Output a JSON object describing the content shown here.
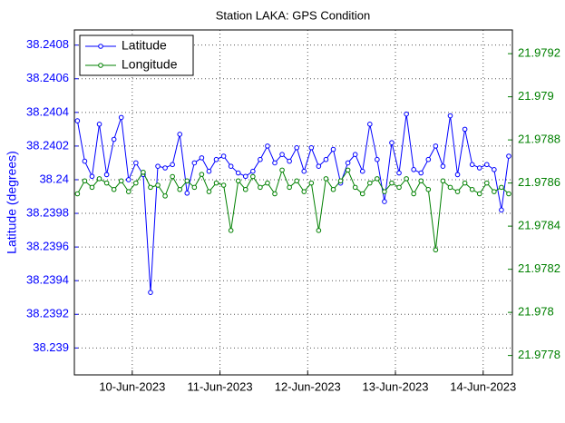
{
  "chart_data": {
    "type": "line",
    "title": "Station LAKA: GPS Condition",
    "y_label": "Latitude (degrees)",
    "x": [
      "2023-06-09T09:00",
      "2023-06-09T11:00",
      "2023-06-09T13:00",
      "2023-06-09T15:00",
      "2023-06-09T17:00",
      "2023-06-09T19:00",
      "2023-06-09T21:00",
      "2023-06-09T23:00",
      "2023-06-10T01:00",
      "2023-06-10T03:00",
      "2023-06-10T05:00",
      "2023-06-10T07:00",
      "2023-06-10T09:00",
      "2023-06-10T11:00",
      "2023-06-10T13:00",
      "2023-06-10T15:00",
      "2023-06-10T17:00",
      "2023-06-10T19:00",
      "2023-06-10T21:00",
      "2023-06-10T23:00",
      "2023-06-11T01:00",
      "2023-06-11T03:00",
      "2023-06-11T05:00",
      "2023-06-11T07:00",
      "2023-06-11T09:00",
      "2023-06-11T11:00",
      "2023-06-11T13:00",
      "2023-06-11T15:00",
      "2023-06-11T17:00",
      "2023-06-11T19:00",
      "2023-06-11T21:00",
      "2023-06-11T23:00",
      "2023-06-12T01:00",
      "2023-06-12T03:00",
      "2023-06-12T05:00",
      "2023-06-12T07:00",
      "2023-06-12T09:00",
      "2023-06-12T11:00",
      "2023-06-12T13:00",
      "2023-06-12T15:00",
      "2023-06-12T17:00",
      "2023-06-12T19:00",
      "2023-06-12T21:00",
      "2023-06-12T23:00",
      "2023-06-13T01:00",
      "2023-06-13T03:00",
      "2023-06-13T05:00",
      "2023-06-13T07:00",
      "2023-06-13T09:00",
      "2023-06-13T11:00",
      "2023-06-13T13:00",
      "2023-06-13T15:00",
      "2023-06-13T17:00",
      "2023-06-13T19:00",
      "2023-06-13T21:00",
      "2023-06-13T23:00",
      "2023-06-14T01:00",
      "2023-06-14T03:00",
      "2023-06-14T05:00",
      "2023-06-14T07:00"
    ],
    "series": [
      {
        "name": "Latitude",
        "color": "#0000ff",
        "values": [
          38.24035,
          38.24011,
          38.24002,
          38.24033,
          38.24003,
          38.24024,
          38.24037,
          38.24,
          38.2401,
          38.24003,
          38.23933,
          38.24008,
          38.24007,
          38.24009,
          38.24027,
          38.23992,
          38.2401,
          38.24013,
          38.24005,
          38.24012,
          38.24014,
          38.24008,
          38.24004,
          38.24002,
          38.24005,
          38.24012,
          38.2402,
          38.2401,
          38.24015,
          38.24011,
          38.24019,
          38.24005,
          38.24019,
          38.24008,
          38.24012,
          38.24018,
          38.23998,
          38.2401,
          38.24015,
          38.24005,
          38.24033,
          38.24012,
          38.23987,
          38.24022,
          38.24004,
          38.24039,
          38.24006,
          38.24004,
          38.24012,
          38.2402,
          38.24008,
          38.24038,
          38.24003,
          38.2403,
          38.24009,
          38.24007,
          38.24009,
          38.24006,
          38.23982,
          38.24014
        ]
      },
      {
        "name": "Longitude",
        "color": "#008000",
        "axis": "y2",
        "values": [
          21.97855,
          21.97861,
          21.97858,
          21.97862,
          21.9786,
          21.97857,
          21.97861,
          21.97856,
          21.9786,
          21.97865,
          21.97858,
          21.97859,
          21.97854,
          21.97863,
          21.97857,
          21.97861,
          21.97858,
          21.97864,
          21.97856,
          21.9786,
          21.97859,
          21.97838,
          21.97861,
          21.97857,
          21.97863,
          21.97858,
          21.9786,
          21.97855,
          21.97866,
          21.97858,
          21.97861,
          21.97856,
          21.9786,
          21.97838,
          21.97862,
          21.97857,
          21.97861,
          21.97866,
          21.97858,
          21.97855,
          21.9786,
          21.97862,
          21.97856,
          21.9786,
          21.97858,
          21.97862,
          21.97855,
          21.97861,
          21.97857,
          21.97829,
          21.97861,
          21.97858,
          21.97856,
          21.9786,
          21.97857,
          21.97855,
          21.9786,
          21.97856,
          21.97858,
          21.97855
        ]
      }
    ],
    "xlim": [
      "2023-06-09T08:10",
      "2023-06-14T08:00"
    ],
    "xticks": [
      {
        "value": "2023-06-10T00:00",
        "label": "10-Jun-2023"
      },
      {
        "value": "2023-06-11T00:00",
        "label": "11-Jun-2023"
      },
      {
        "value": "2023-06-12T00:00",
        "label": "12-Jun-2023"
      },
      {
        "value": "2023-06-13T00:00",
        "label": "13-Jun-2023"
      },
      {
        "value": "2023-06-14T00:00",
        "label": "14-Jun-2023"
      }
    ],
    "ylim": [
      38.23884,
      38.24089
    ],
    "yticks": [
      38.239,
      38.2392,
      38.2394,
      38.2396,
      38.2398,
      38.24,
      38.2402,
      38.2404,
      38.2406,
      38.2408
    ],
    "y2lim": [
      21.97771,
      21.97931
    ],
    "y2ticks": [
      21.9778,
      21.978,
      21.9782,
      21.9784,
      21.9786,
      21.9788,
      21.979,
      21.9792
    ],
    "grid": true,
    "legend": "upper left"
  }
}
